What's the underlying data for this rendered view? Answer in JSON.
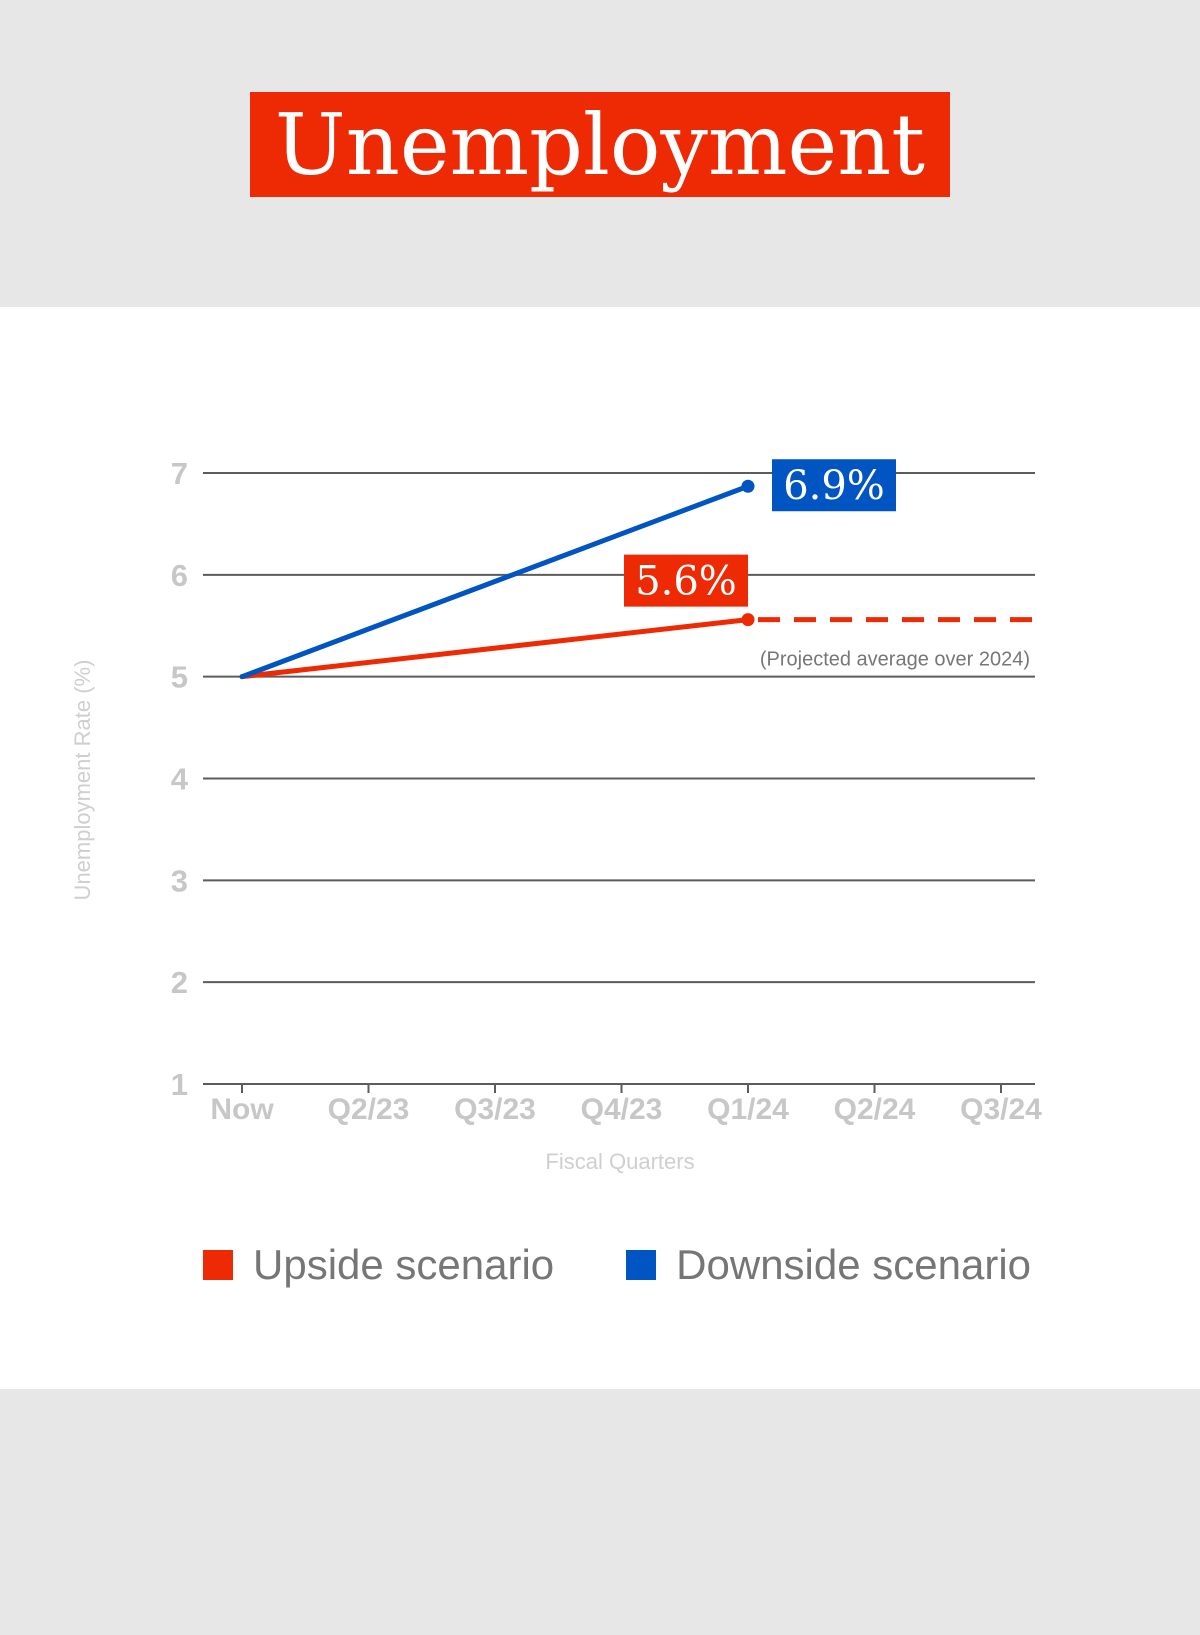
{
  "title": "Unemployment",
  "colors": {
    "title_bg": "#ee2a05",
    "upside": "#ee2a05",
    "downside": "#0055c3",
    "grid": "#5c5c5c",
    "tick_text": "#c7c7c7",
    "axis_title_text": "#cfcfcf",
    "annotation_text": "#777777",
    "legend_text": "#767676"
  },
  "chart_data": {
    "type": "line",
    "x": [
      "Now",
      "Q2/23",
      "Q3/23",
      "Q4/23",
      "Q1/24",
      "Q2/24",
      "Q3/24"
    ],
    "xlabel": "Fiscal Quarters",
    "ylabel": "Unemployment Rate (%)",
    "yticks": [
      1,
      2,
      3,
      4,
      5,
      6,
      7
    ],
    "ylim": [
      1,
      7
    ],
    "grid": true,
    "series": [
      {
        "name": "Upside scenario",
        "color": "#ee2a05",
        "points": [
          {
            "x": "Now",
            "y": 5.0
          },
          {
            "x": "Q1/24",
            "y": 5.56
          }
        ],
        "end_label": "5.6%",
        "projection": {
          "y": 5.56,
          "from": "Q1/24",
          "style": "dashed",
          "note": "(Projected average over 2024)"
        }
      },
      {
        "name": "Downside scenario",
        "color": "#0055c3",
        "points": [
          {
            "x": "Now",
            "y": 5.0
          },
          {
            "x": "Q1/24",
            "y": 6.87
          }
        ],
        "end_label": "6.9%"
      }
    ],
    "legend": {
      "position": "bottom"
    }
  }
}
